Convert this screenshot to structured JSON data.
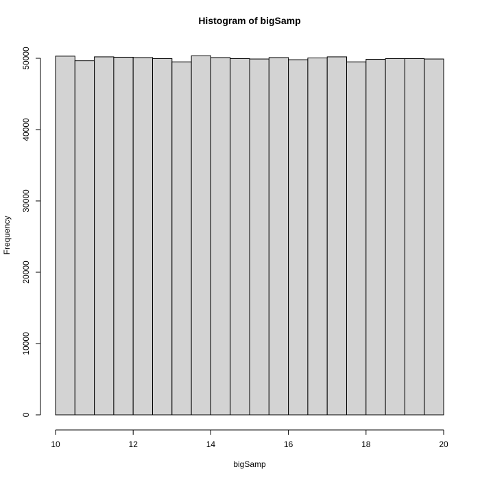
{
  "chart_data": {
    "type": "bar",
    "title": "Histogram of bigSamp",
    "xlabel": "bigSamp",
    "ylabel": "Frequency",
    "bin_edges": [
      10,
      10.5,
      11,
      11.5,
      12,
      12.5,
      13,
      13.5,
      14,
      14.5,
      15,
      15.5,
      16,
      16.5,
      17,
      17.5,
      18,
      18.5,
      19,
      19.5,
      20
    ],
    "values": [
      50300,
      49650,
      50200,
      50150,
      50100,
      49950,
      49500,
      50350,
      50100,
      49950,
      49900,
      50100,
      49800,
      50050,
      50200,
      49500,
      49850,
      49950,
      49950,
      49900
    ],
    "xlim": [
      10,
      20
    ],
    "ylim": [
      0,
      52000
    ],
    "x_ticks": [
      10,
      12,
      14,
      16,
      18,
      20
    ],
    "y_ticks": [
      0,
      10000,
      20000,
      30000,
      40000,
      50000
    ],
    "bar_fill": "#d3d3d3",
    "bar_stroke": "#000000",
    "grid": false
  }
}
